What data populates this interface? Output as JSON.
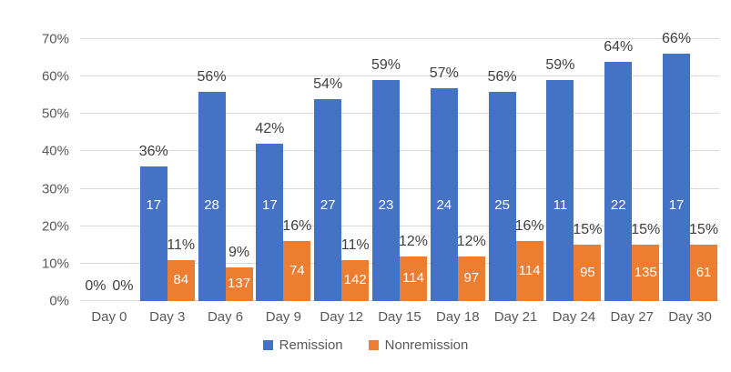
{
  "chart_data": {
    "type": "bar",
    "title": "",
    "categories": [
      "Day 0",
      "Day 3",
      "Day 6",
      "Day 9",
      "Day 12",
      "Day 15",
      "Day 18",
      "Day 21",
      "Day 24",
      "Day 27",
      "Day 30"
    ],
    "series": [
      {
        "name": "Remission",
        "color": "#4472C4",
        "values": [
          0,
          36,
          56,
          42,
          54,
          59,
          57,
          56,
          59,
          64,
          66
        ],
        "labels": [
          "0%",
          "36%",
          "56%",
          "42%",
          "54%",
          "59%",
          "57%",
          "56%",
          "59%",
          "64%",
          "66%"
        ],
        "counts": [
          null,
          17,
          28,
          17,
          27,
          23,
          24,
          25,
          11,
          22,
          17
        ]
      },
      {
        "name": "Nonremission",
        "color": "#ED7D31",
        "values": [
          0,
          11,
          9,
          16,
          11,
          12,
          12,
          16,
          15,
          15,
          15
        ],
        "labels": [
          "0%",
          "11%",
          "9%",
          "16%",
          "11%",
          "12%",
          "12%",
          "16%",
          "15%",
          "15%",
          "15%"
        ],
        "counts": [
          null,
          84,
          137,
          74,
          142,
          114,
          97,
          114,
          95,
          135,
          61
        ]
      }
    ],
    "xlabel": "",
    "ylabel": "",
    "ylim": [
      0,
      70
    ],
    "ytick_values": [
      0,
      10,
      20,
      30,
      40,
      50,
      60,
      70
    ],
    "yticks": [
      "0%",
      "10%",
      "20%",
      "30%",
      "40%",
      "50%",
      "60%",
      "70%"
    ],
    "grid": true,
    "legend_position": "bottom"
  },
  "colors": {
    "background": "#FFFFFF",
    "gridline": "#D9D9D9",
    "axis_text": "#595959",
    "data_label_text": "#404040",
    "count_label_text": "#FFFFFF"
  }
}
